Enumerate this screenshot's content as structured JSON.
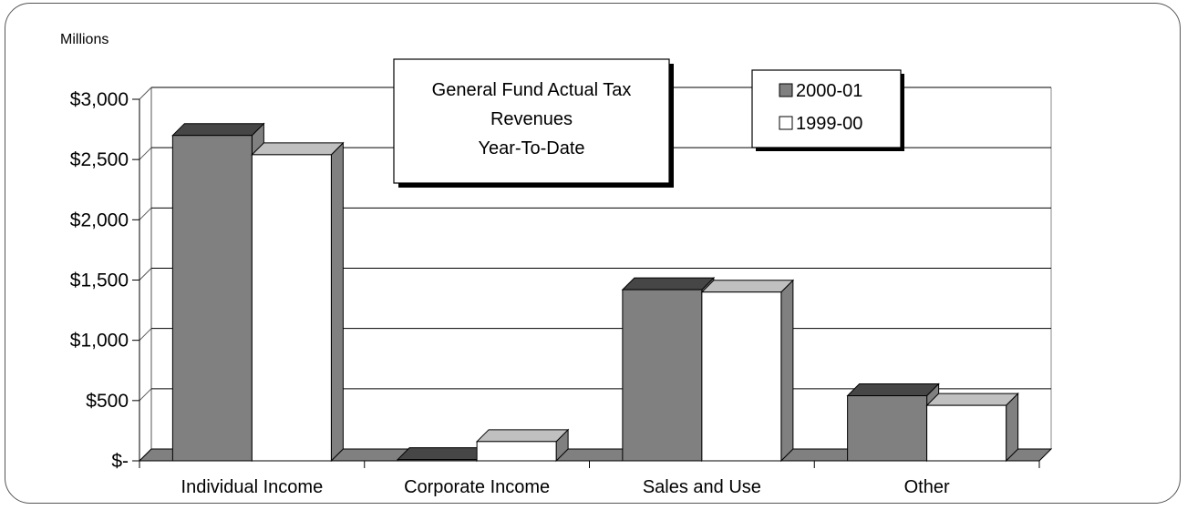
{
  "chart_data": {
    "type": "bar",
    "title_lines": [
      "General Fund Actual Tax",
      "Revenues",
      "Year-To-Date"
    ],
    "unit_label": "Millions",
    "categories": [
      "Individual Income",
      "Corporate Income",
      "Sales and Use",
      "Other"
    ],
    "series": [
      {
        "name": "2000-01",
        "values": [
          2700,
          10,
          1420,
          540
        ],
        "color": "#808080"
      },
      {
        "name": "1999-00",
        "values": [
          2540,
          160,
          1400,
          460
        ],
        "color": "#ffffff"
      }
    ],
    "y_ticks": [
      {
        "value": 0,
        "label": "$-"
      },
      {
        "value": 500,
        "label": "$500"
      },
      {
        "value": 1000,
        "label": "$1,000"
      },
      {
        "value": 1500,
        "label": "$1,500"
      },
      {
        "value": 2000,
        "label": "$2,000"
      },
      {
        "value": 2500,
        "label": "$2,500"
      },
      {
        "value": 3000,
        "label": "$3,000"
      }
    ],
    "ylim": [
      0,
      3000
    ],
    "grid": true,
    "legend_position": "top-right"
  }
}
